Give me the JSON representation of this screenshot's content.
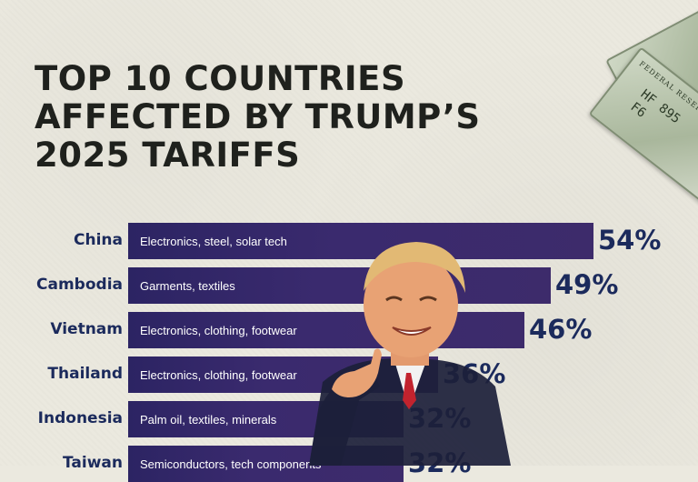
{
  "title_lines": [
    "TOP 10 COUNTRIES",
    "AFFECTED BY TRUMP’S",
    "2025 TARIFFS"
  ],
  "money": {
    "bill_serial": "HF 895",
    "bill_block": "F6",
    "bill_seal": "FEDERAL RESERVE"
  },
  "colors": {
    "bar": "#2c2463",
    "country_text": "#1b2a5c",
    "title": "#1f211d",
    "background": "#ebe9df"
  },
  "chart_data": {
    "type": "bar",
    "orientation": "horizontal",
    "unit": "%",
    "categories": [
      "China",
      "Cambodia",
      "Vietnam",
      "Thailand",
      "Indonesia",
      "Taiwan"
    ],
    "descriptions": [
      "Electronics, steel, solar tech",
      "Garments, textiles",
      "Electronics, clothing, footwear",
      "Electronics, clothing, footwear",
      "Palm oil, textiles, minerals",
      "Semiconductors, tech components"
    ],
    "values": [
      54,
      49,
      46,
      36,
      32,
      32
    ],
    "value_labels": [
      "54%",
      "49%",
      "46%",
      "36%",
      "32%",
      "32%"
    ],
    "xlim": [
      0,
      54
    ],
    "grid": false,
    "legend": "none"
  }
}
